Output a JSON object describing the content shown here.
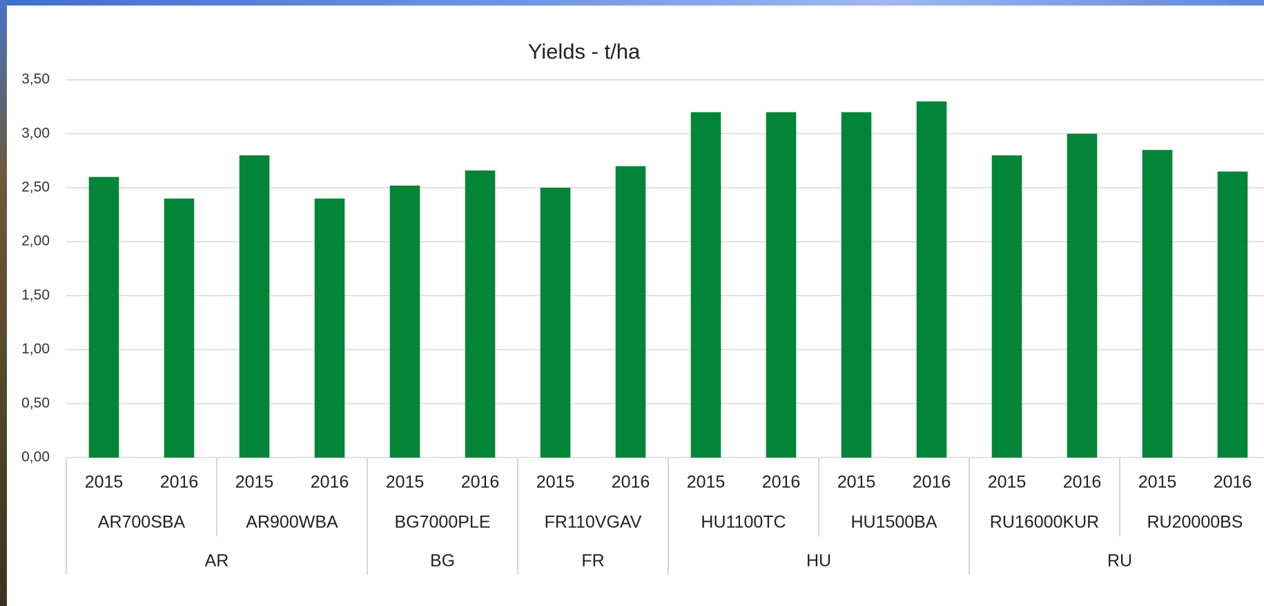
{
  "chart_data": {
    "type": "bar",
    "title": "Yields - t/ha",
    "color": "#038537",
    "ylim": [
      0,
      3.5
    ],
    "yticks": [
      {
        "value": 0,
        "label": "0,00"
      },
      {
        "value": 0.5,
        "label": "0,50"
      },
      {
        "value": 1,
        "label": "1,00"
      },
      {
        "value": 1.5,
        "label": "1,50"
      },
      {
        "value": 2,
        "label": "2,00"
      },
      {
        "value": 2.5,
        "label": "2,50"
      },
      {
        "value": 3,
        "label": "3,00"
      },
      {
        "value": 3.5,
        "label": "3,50"
      }
    ],
    "grid": true,
    "countries": [
      {
        "name": "AR",
        "sites": [
          {
            "name": "AR700SBA",
            "categories": [
              "2015",
              "2016"
            ],
            "values": [
              2.6,
              2.4
            ]
          },
          {
            "name": "AR900WBA",
            "categories": [
              "2015",
              "2016"
            ],
            "values": [
              2.8,
              2.4
            ]
          }
        ]
      },
      {
        "name": "BG",
        "sites": [
          {
            "name": "BG7000PLE",
            "categories": [
              "2015",
              "2016"
            ],
            "values": [
              2.52,
              2.66
            ]
          }
        ]
      },
      {
        "name": "FR",
        "sites": [
          {
            "name": "FR110VGAV",
            "categories": [
              "2015",
              "2016"
            ],
            "values": [
              2.5,
              2.7
            ]
          }
        ]
      },
      {
        "name": "HU",
        "sites": [
          {
            "name": "HU1100TC",
            "categories": [
              "2015",
              "2016"
            ],
            "values": [
              3.2,
              3.2
            ]
          },
          {
            "name": "HU1500BA",
            "categories": [
              "2015",
              "2016"
            ],
            "values": [
              3.2,
              3.3
            ]
          }
        ]
      },
      {
        "name": "RU",
        "sites": [
          {
            "name": "RU16000KUR",
            "categories": [
              "2015",
              "2016"
            ],
            "values": [
              2.8,
              3.0
            ]
          },
          {
            "name": "RU20000BS",
            "categories": [
              "2015",
              "2016"
            ],
            "values": [
              2.85,
              2.65
            ]
          }
        ]
      }
    ]
  }
}
